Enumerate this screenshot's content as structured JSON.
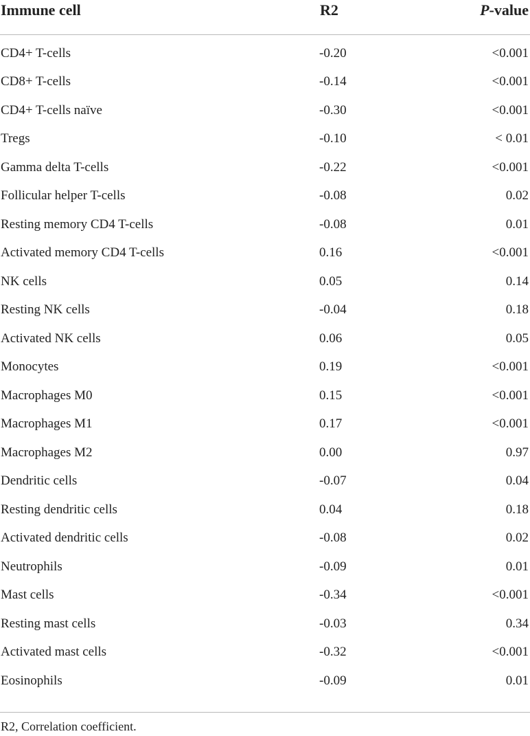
{
  "table": {
    "headers": {
      "cell": "Immune cell",
      "r2": "R2",
      "p_italic": "P",
      "p_rest": "-value"
    },
    "rows": [
      {
        "cell": "CD4+ T-cells",
        "r2": "-0.20",
        "p": "<0.001"
      },
      {
        "cell": "CD8+ T-cells",
        "r2": "-0.14",
        "p": "<0.001"
      },
      {
        "cell": "CD4+ T-cells naïve",
        "r2": "-0.30",
        "p": "<0.001"
      },
      {
        "cell": "Tregs",
        "r2": "-0.10",
        "p": "< 0.01"
      },
      {
        "cell": "Gamma delta T-cells",
        "r2": "-0.22",
        "p": "<0.001"
      },
      {
        "cell": "Follicular helper T-cells",
        "r2": "-0.08",
        "p": "0.02"
      },
      {
        "cell": "Resting memory CD4 T-cells",
        "r2": "-0.08",
        "p": "0.01"
      },
      {
        "cell": "Activated memory CD4 T-cells",
        "r2": "0.16",
        "p": "<0.001"
      },
      {
        "cell": "NK cells",
        "r2": "0.05",
        "p": "0.14"
      },
      {
        "cell": "Resting NK cells",
        "r2": "-0.04",
        "p": "0.18"
      },
      {
        "cell": "Activated NK cells",
        "r2": "0.06",
        "p": "0.05"
      },
      {
        "cell": "Monocytes",
        "r2": "0.19",
        "p": "<0.001"
      },
      {
        "cell": "Macrophages M0",
        "r2": "0.15",
        "p": "<0.001"
      },
      {
        "cell": "Macrophages M1",
        "r2": "0.17",
        "p": "<0.001"
      },
      {
        "cell": "Macrophages M2",
        "r2": "0.00",
        "p": "0.97"
      },
      {
        "cell": "Dendritic cells",
        "r2": "-0.07",
        "p": "0.04"
      },
      {
        "cell": "Resting dendritic cells",
        "r2": "0.04",
        "p": "0.18"
      },
      {
        "cell": "Activated dendritic cells",
        "r2": "-0.08",
        "p": "0.02"
      },
      {
        "cell": "Neutrophils",
        "r2": "-0.09",
        "p": "0.01"
      },
      {
        "cell": "Mast cells",
        "r2": "-0.34",
        "p": "<0.001"
      },
      {
        "cell": "Resting mast cells",
        "r2": "-0.03",
        "p": "0.34"
      },
      {
        "cell": "Activated mast cells",
        "r2": "-0.32",
        "p": "<0.001"
      },
      {
        "cell": "Eosinophils",
        "r2": "-0.09",
        "p": "0.01"
      }
    ]
  },
  "footnote": "R2, Correlation coefficient."
}
